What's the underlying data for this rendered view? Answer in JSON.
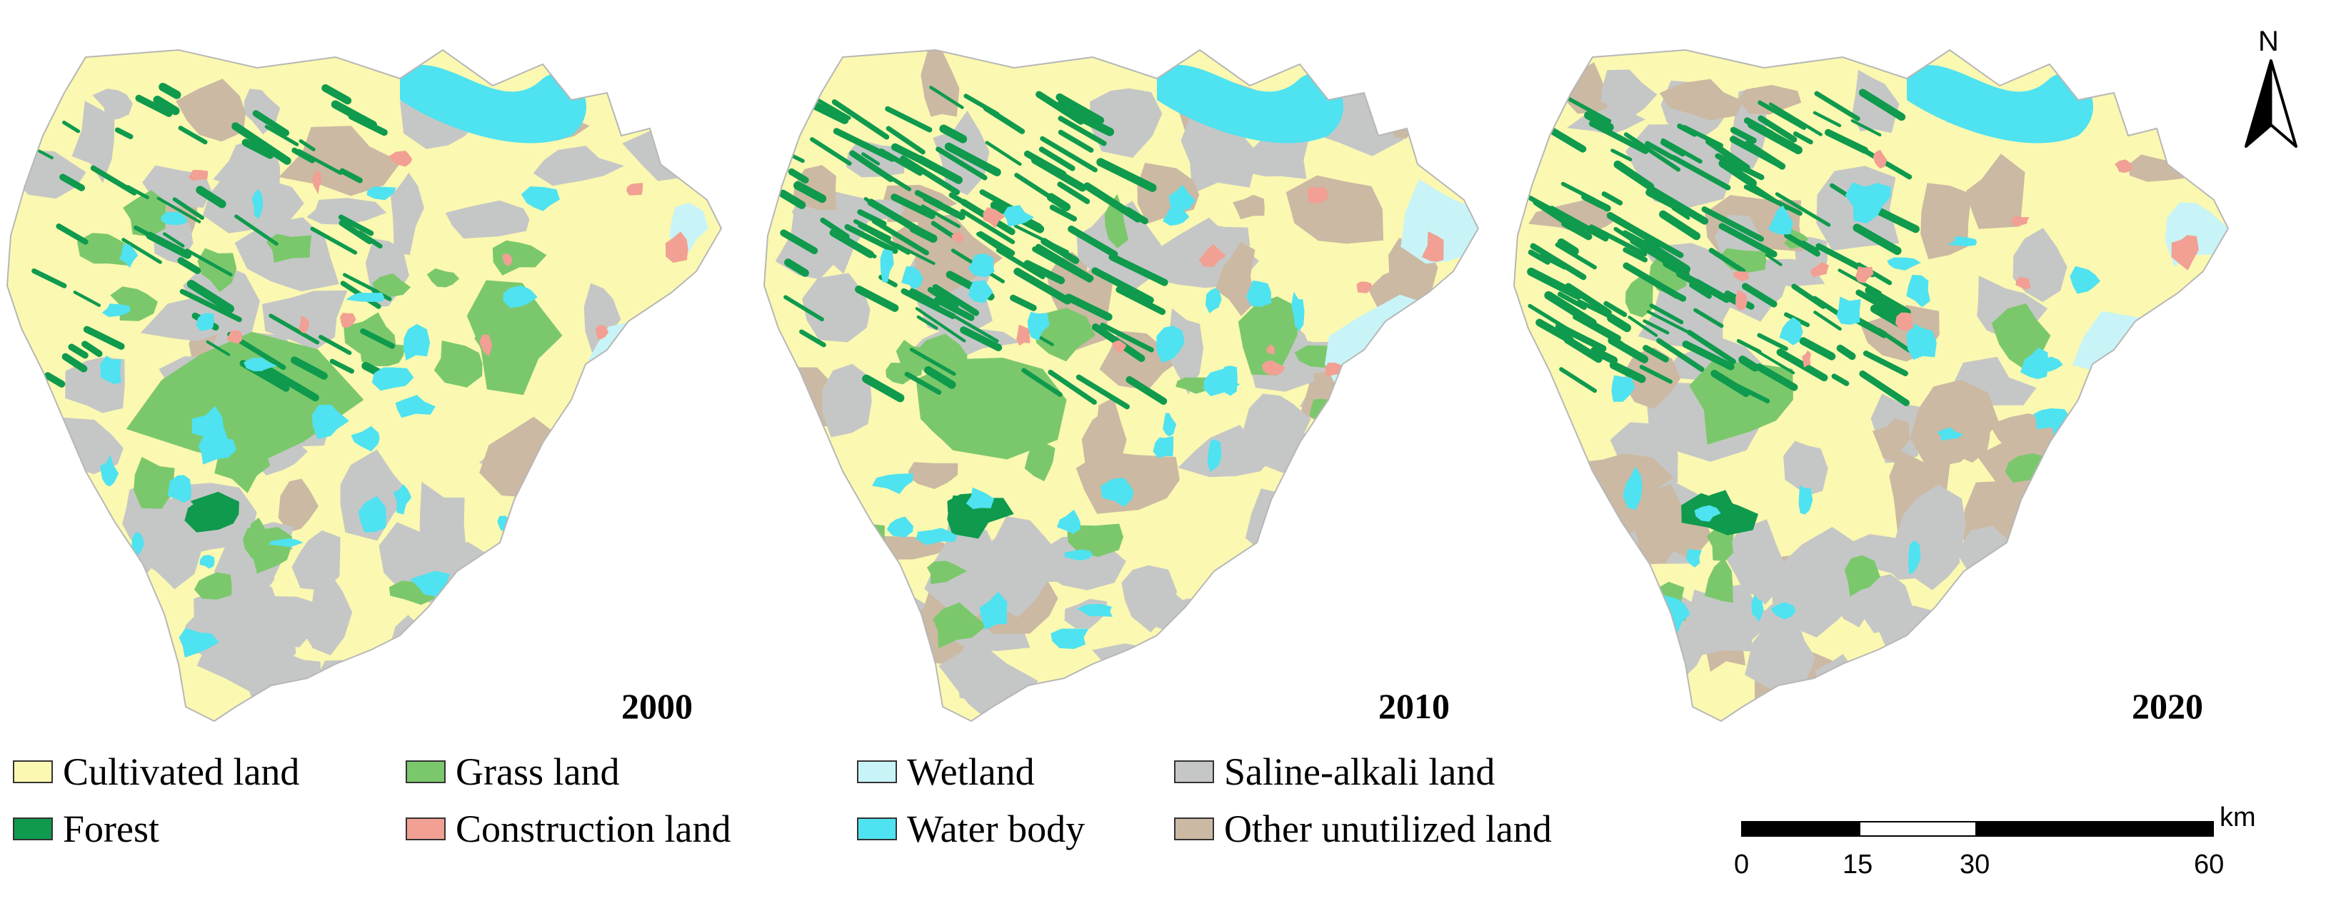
{
  "maps": [
    {
      "year": "2000"
    },
    {
      "year": "2010"
    },
    {
      "year": "2020"
    }
  ],
  "legend": [
    {
      "label": "Cultivated land",
      "color": "#fbf8b1"
    },
    {
      "label": "Forest",
      "color": "#0f9a4d"
    },
    {
      "label": "Grass land",
      "color": "#7bc86c"
    },
    {
      "label": "Construction land",
      "color": "#f1a093"
    },
    {
      "label": "Wetland",
      "color": "#c8f4f7"
    },
    {
      "label": "Water body",
      "color": "#4fe2f0"
    },
    {
      "label": "Saline-alkali land",
      "color": "#c5c7c6"
    },
    {
      "label": "Other unutilized land",
      "color": "#cbb9a3"
    }
  ],
  "scale_bar": {
    "unit": "km",
    "ticks": [
      "0",
      "15",
      "30",
      "60"
    ]
  },
  "north_arrow": {
    "label": "N"
  }
}
